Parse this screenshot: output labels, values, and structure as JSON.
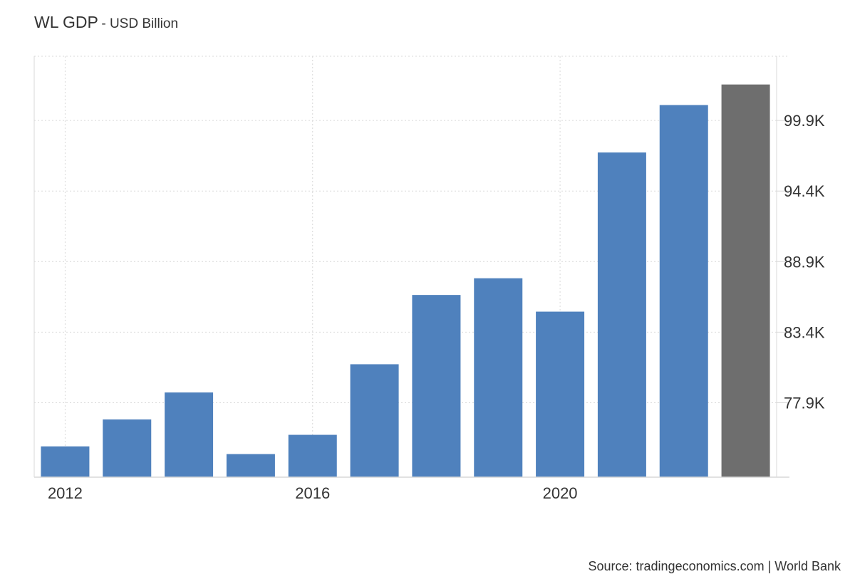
{
  "header": {
    "title": "WL GDP",
    "subtitle": "- USD Billion"
  },
  "source": "Source: tradingeconomics.com | World Bank",
  "colors": {
    "bar": "#4f81bd",
    "bar_last": "#6e6e6e",
    "grid": "#d9d9d9",
    "text": "#333333"
  },
  "chart_data": {
    "type": "bar",
    "title": "WL GDP",
    "subtitle": "USD Billion",
    "categories": [
      "2012",
      "2013",
      "2014",
      "2015",
      "2016",
      "2017",
      "2018",
      "2019",
      "2020",
      "2021",
      "2022",
      "2023"
    ],
    "values": [
      74.5,
      76.6,
      78.7,
      73.9,
      75.4,
      80.9,
      86.3,
      87.6,
      85.0,
      97.4,
      101.1,
      102.7
    ],
    "highlight_last": true,
    "x_tick_labels": [
      "2012",
      "2016",
      "2020"
    ],
    "y_tick_values": [
      77.9,
      83.4,
      88.9,
      94.4,
      99.9
    ],
    "y_tick_labels": [
      "77.9K",
      "83.4K",
      "88.9K",
      "94.4K",
      "99.9K"
    ],
    "ylim": [
      72.1,
      104.9
    ],
    "y_axis_position": "right",
    "grid": true,
    "legend": false
  }
}
